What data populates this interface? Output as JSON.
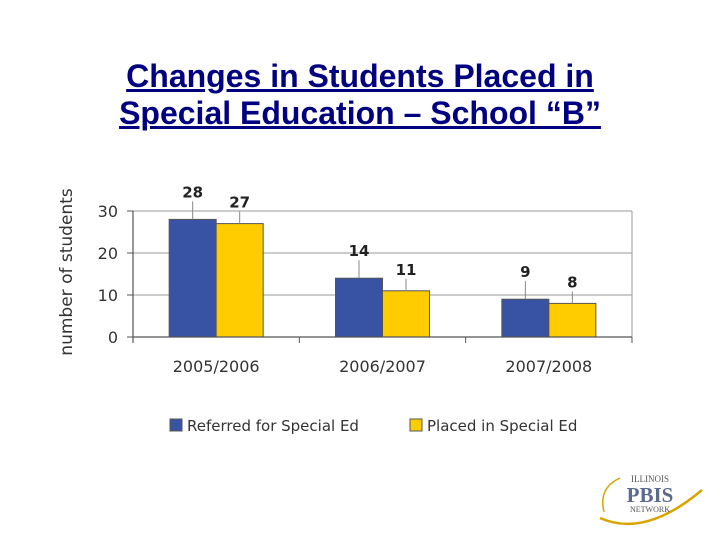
{
  "slide": {
    "title_line1": "Changes in Students Placed in",
    "title_line2": "Special Education – School “B”"
  },
  "chart_data": {
    "type": "bar",
    "title": "",
    "xlabel": "",
    "ylabel": "number of students",
    "categories": [
      "2005/2006",
      "2006/2007",
      "2007/2008"
    ],
    "series": [
      {
        "name": "Referred for Special Ed",
        "values": [
          28,
          14,
          9
        ],
        "color": "#3953a4"
      },
      {
        "name": "Placed in Special Ed",
        "values": [
          27,
          11,
          8
        ],
        "color": "#ffcc00"
      }
    ],
    "yticks": [
      0,
      10,
      20,
      30
    ],
    "ylim": [
      0,
      30
    ],
    "grid": true,
    "legend": "bottom",
    "data_labels": true
  },
  "logo": {
    "top_text": "ILLINOIS",
    "main_text": "PBIS",
    "bottom_text": "NETWORK"
  }
}
